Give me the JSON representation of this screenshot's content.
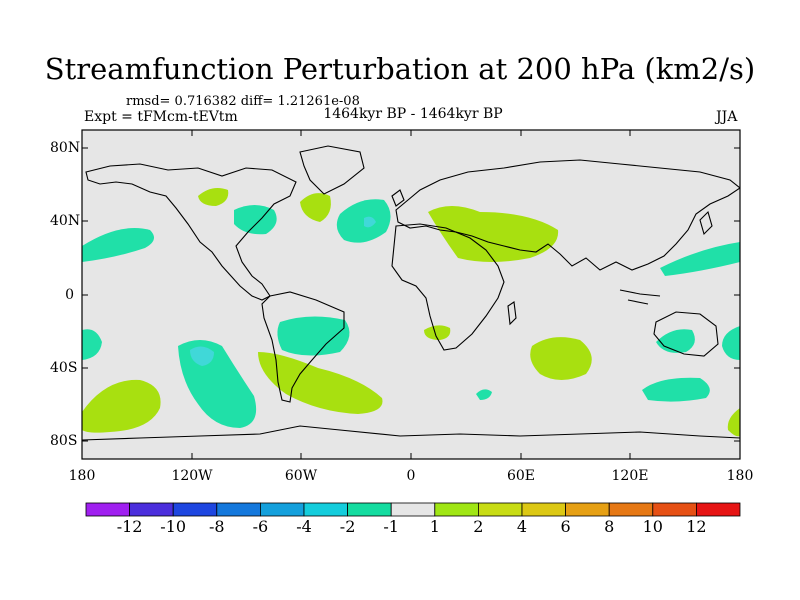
{
  "title": "Streamfunction Perturbation at 200 hPa (km2/s)",
  "stats_text": "rmsd= 0.716382 diff= 1.21261e-08",
  "experiment_text": "Expt = tFMcm-tEVtm",
  "period_text": "1464kyr BP - 1464kyr BP",
  "season": "JJA",
  "lat_ticks": [
    "80N",
    "40N",
    "0",
    "40S",
    "80S"
  ],
  "lon_ticks": [
    "180",
    "120W",
    "60W",
    "0",
    "60E",
    "120E",
    "180"
  ],
  "colorbar": {
    "labels": [
      "-12",
      "-10",
      "-8",
      "-6",
      "-4",
      "-2",
      "-1",
      "1",
      "2",
      "4",
      "6",
      "8",
      "10",
      "12"
    ],
    "colors": [
      "#a020f0",
      "#4b2edc",
      "#1e46e0",
      "#1478dc",
      "#14a0dc",
      "#14cddc",
      "#14dca0",
      "#e6e6e6",
      "#a0e614",
      "#c8dc14",
      "#dcc814",
      "#e6a014",
      "#e67814",
      "#e65014",
      "#e61414"
    ]
  },
  "map": {
    "background_color": "#e6e6e6",
    "negative_color": "#20e0a8",
    "weak_negative_color": "#40d8d8",
    "positive_color": "#a8e010"
  }
}
